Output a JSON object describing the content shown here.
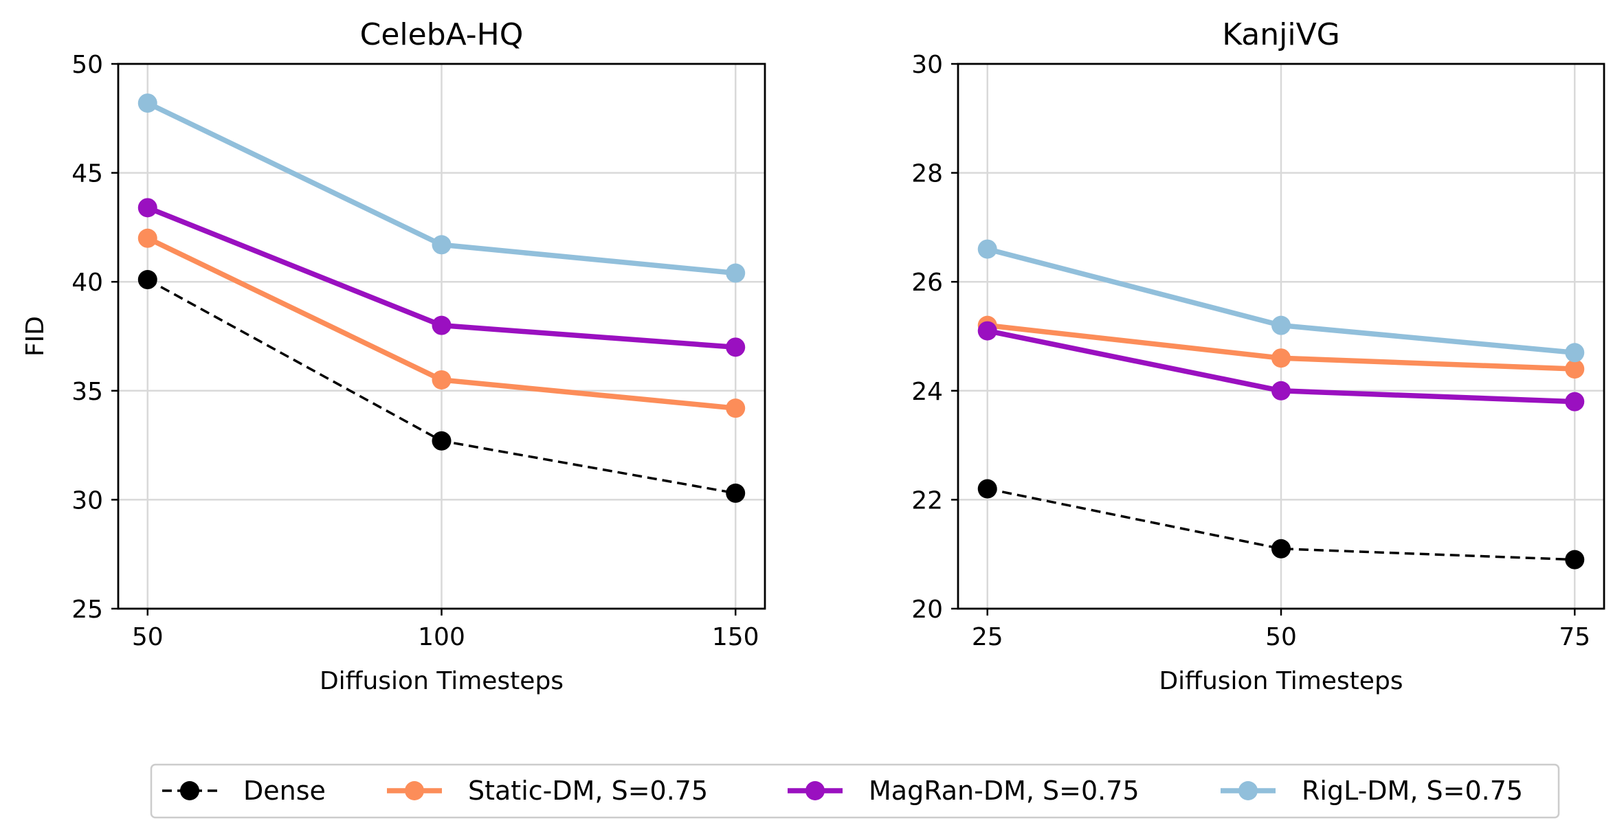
{
  "chart_data": [
    {
      "type": "line",
      "title": "CelebA-HQ",
      "xlabel": "Diffusion Timesteps",
      "ylabel": "FID",
      "x": [
        50,
        100,
        150
      ],
      "x_ticks": [
        "50",
        "100",
        "150"
      ],
      "xlim": [
        45,
        155
      ],
      "ylim": [
        25,
        50
      ],
      "y_ticks": [
        "25",
        "30",
        "35",
        "40",
        "45",
        "50"
      ],
      "y_tick_values": [
        25,
        30,
        35,
        40,
        45,
        50
      ],
      "grid": true,
      "series": [
        {
          "name": "Dense",
          "values": [
            40.1,
            32.7,
            30.3
          ]
        },
        {
          "name": "Static-DM, S=0.75",
          "values": [
            42.0,
            35.5,
            34.2
          ]
        },
        {
          "name": "MagRan-DM, S=0.75",
          "values": [
            43.4,
            38.0,
            37.0
          ]
        },
        {
          "name": "RigL-DM, S=0.75",
          "values": [
            48.2,
            41.7,
            40.4
          ]
        }
      ]
    },
    {
      "type": "line",
      "title": "KanjiVG",
      "xlabel": "Diffusion Timesteps",
      "ylabel": "",
      "x": [
        25,
        50,
        75
      ],
      "x_ticks": [
        "25",
        "50",
        "75"
      ],
      "xlim": [
        22.5,
        77.5
      ],
      "ylim": [
        20,
        30
      ],
      "y_ticks": [
        "20",
        "22",
        "24",
        "26",
        "28",
        "30"
      ],
      "y_tick_values": [
        20,
        22,
        24,
        26,
        28,
        30
      ],
      "grid": true,
      "series": [
        {
          "name": "Dense",
          "values": [
            22.2,
            21.1,
            20.9
          ]
        },
        {
          "name": "Static-DM, S=0.75",
          "values": [
            25.2,
            24.6,
            24.4
          ]
        },
        {
          "name": "MagRan-DM, S=0.75",
          "values": [
            25.1,
            24.0,
            23.8
          ]
        },
        {
          "name": "RigL-DM, S=0.75",
          "values": [
            26.6,
            25.2,
            24.7
          ]
        }
      ]
    }
  ],
  "legend": {
    "placement": "bottom-center",
    "entries": [
      {
        "name": "Dense",
        "color": "#000000",
        "dashed": true
      },
      {
        "name": "Static-DM, S=0.75",
        "color": "#fc8d59",
        "dashed": false
      },
      {
        "name": "MagRan-DM, S=0.75",
        "color": "#9a10c0",
        "dashed": false
      },
      {
        "name": "RigL-DM, S=0.75",
        "color": "#91bfdb",
        "dashed": false
      }
    ]
  }
}
